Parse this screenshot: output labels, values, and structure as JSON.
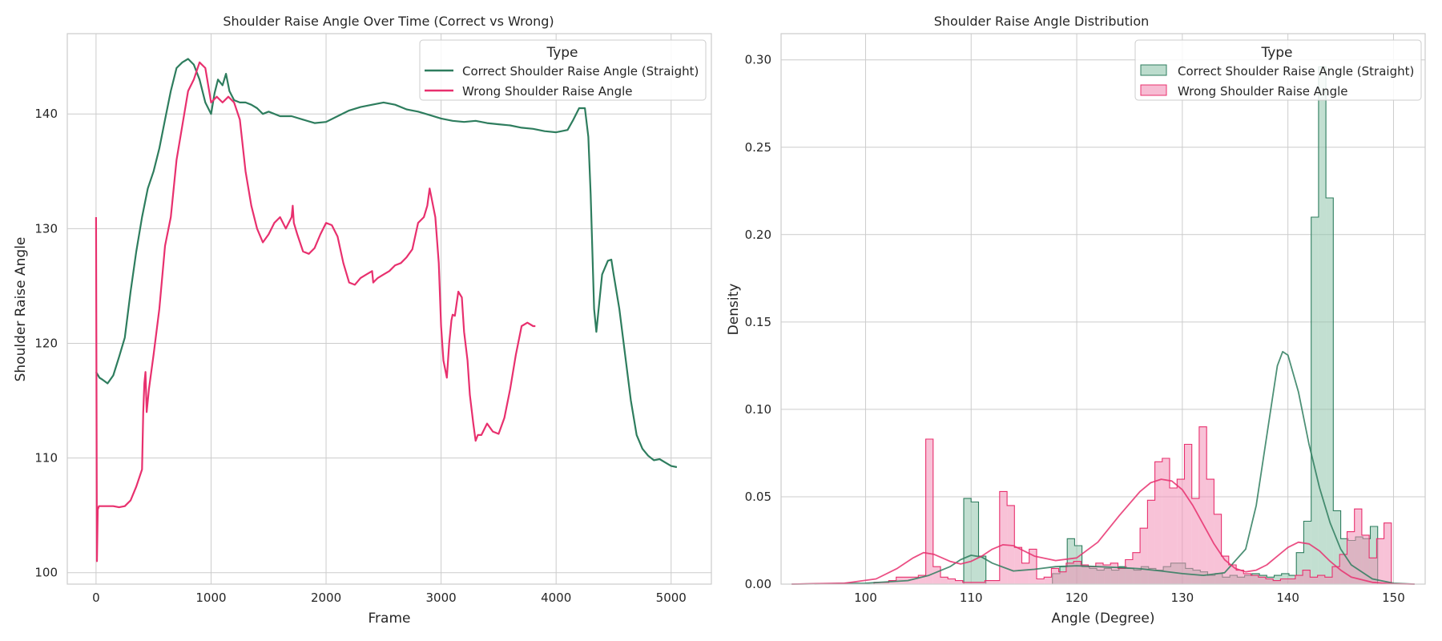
{
  "figure": {
    "left": {
      "title": "Shoulder Raise Angle Over Time (Correct vs Wrong)",
      "xlabel": "Frame",
      "ylabel": "Shoulder Raise Angle"
    },
    "right": {
      "title": "Shoulder Raise Angle Distribution",
      "xlabel": "Angle (Degree)",
      "ylabel": "Density"
    },
    "legend": {
      "title": "Type",
      "correct": "Correct Shoulder Raise Angle (Straight)",
      "wrong": "Wrong Shoulder Raise Angle"
    },
    "colors": {
      "correct": "#2e7d5e",
      "wrong": "#e8306e",
      "correct_fill": "#8fc4ab",
      "wrong_fill": "#f28fb6",
      "grid": "#cccccc"
    }
  },
  "chart_data": [
    {
      "type": "line",
      "title": "Shoulder Raise Angle Over Time (Correct vs Wrong)",
      "xlabel": "Frame",
      "ylabel": "Shoulder Raise Angle",
      "xlim": [
        -250,
        5350
      ],
      "ylim": [
        99,
        147
      ],
      "xticks": [
        0,
        1000,
        2000,
        3000,
        4000,
        5000
      ],
      "yticks": [
        100,
        110,
        120,
        130,
        140
      ],
      "grid": true,
      "legend_title": "Type",
      "legend_position": "top-right",
      "series": [
        {
          "name": "Correct Shoulder Raise Angle (Straight)",
          "color": "#2e7d5e",
          "x": [
            0,
            30,
            60,
            100,
            150,
            200,
            250,
            300,
            350,
            400,
            450,
            500,
            550,
            600,
            650,
            700,
            750,
            800,
            850,
            900,
            950,
            1000,
            1030,
            1060,
            1100,
            1130,
            1160,
            1200,
            1250,
            1300,
            1350,
            1400,
            1450,
            1500,
            1600,
            1700,
            1800,
            1900,
            2000,
            2100,
            2200,
            2300,
            2400,
            2500,
            2600,
            2700,
            2800,
            2900,
            3000,
            3100,
            3200,
            3300,
            3400,
            3500,
            3600,
            3700,
            3800,
            3900,
            4000,
            4100,
            4150,
            4200,
            4250,
            4280,
            4300,
            4330,
            4350,
            4380,
            4400,
            4450,
            4480,
            4500,
            4550,
            4600,
            4650,
            4700,
            4750,
            4800,
            4850,
            4900,
            4950,
            5000,
            5050
          ],
          "y": [
            117.5,
            117,
            116.8,
            116.5,
            117.2,
            118.8,
            120.5,
            124.5,
            128,
            131,
            133.5,
            135,
            137,
            139.5,
            142,
            144,
            144.5,
            144.8,
            144.3,
            143,
            141,
            140,
            141.8,
            143,
            142.5,
            143.5,
            142,
            141.2,
            141,
            141,
            140.8,
            140.5,
            140,
            140.2,
            139.8,
            139.8,
            139.5,
            139.2,
            139.3,
            139.8,
            140.3,
            140.6,
            140.8,
            141,
            140.8,
            140.4,
            140.2,
            139.9,
            139.6,
            139.4,
            139.3,
            139.4,
            139.2,
            139.1,
            139,
            138.8,
            138.7,
            138.5,
            138.4,
            138.6,
            139.5,
            140.5,
            140.5,
            138,
            133,
            123,
            121,
            124,
            126,
            127.2,
            127.3,
            126,
            123,
            119,
            115,
            112,
            110.8,
            110.2,
            109.8,
            109.9,
            109.6,
            109.3,
            109.2
          ]
        },
        {
          "name": "Wrong Shoulder Raise Angle",
          "color": "#e8306e",
          "x": [
            0,
            8,
            15,
            25,
            35,
            60,
            100,
            150,
            200,
            250,
            300,
            350,
            400,
            410,
            420,
            430,
            440,
            460,
            480,
            500,
            550,
            600,
            650,
            700,
            750,
            800,
            850,
            900,
            950,
            1000,
            1050,
            1100,
            1150,
            1200,
            1250,
            1300,
            1350,
            1400,
            1450,
            1500,
            1550,
            1600,
            1650,
            1700,
            1710,
            1720,
            1750,
            1800,
            1850,
            1900,
            1950,
            2000,
            2050,
            2100,
            2150,
            2200,
            2250,
            2300,
            2350,
            2400,
            2410,
            2420,
            2450,
            2500,
            2550,
            2600,
            2650,
            2700,
            2750,
            2800,
            2850,
            2880,
            2900,
            2950,
            2980,
            3000,
            3020,
            3050,
            3070,
            3090,
            3100,
            3120,
            3150,
            3180,
            3200,
            3230,
            3250,
            3280,
            3300,
            3320,
            3350,
            3400,
            3450,
            3500,
            3550,
            3600,
            3650,
            3700,
            3750,
            3800,
            3820
          ],
          "y": [
            131,
            101,
            105.5,
            105.8,
            105.8,
            105.8,
            105.8,
            105.8,
            105.7,
            105.8,
            106.3,
            107.5,
            109,
            114,
            116.5,
            117.5,
            114,
            116,
            117.5,
            119,
            123,
            128.5,
            131,
            136,
            139,
            142,
            143,
            144.5,
            144,
            141,
            141.5,
            141,
            141.5,
            141,
            139.5,
            135,
            132,
            130,
            128.8,
            129.5,
            130.5,
            131,
            130,
            131,
            132,
            130.5,
            129.5,
            128,
            127.8,
            128.3,
            129.5,
            130.5,
            130.3,
            129.3,
            127,
            125.3,
            125.1,
            125.7,
            126,
            126.3,
            125.3,
            125.4,
            125.7,
            126,
            126.3,
            126.8,
            127,
            127.5,
            128.2,
            130.5,
            131,
            132,
            133.5,
            131,
            127,
            121.5,
            118.5,
            117,
            120,
            122,
            122.5,
            122.4,
            124.5,
            124,
            121,
            118.5,
            115.5,
            113,
            111.5,
            112,
            112,
            113,
            112.3,
            112.1,
            113.5,
            116,
            119,
            121.5,
            121.8,
            121.5,
            121.5
          ]
        }
      ]
    },
    {
      "type": "histogram",
      "title": "Shoulder Raise Angle Distribution",
      "xlabel": "Angle (Degree)",
      "ylabel": "Density",
      "xlim": [
        92,
        153
      ],
      "ylim": [
        0,
        0.315
      ],
      "xticks": [
        100,
        110,
        120,
        130,
        140,
        150
      ],
      "yticks": [
        0.0,
        0.05,
        0.1,
        0.15,
        0.2,
        0.25,
        0.3
      ],
      "ytick_labels": [
        "0.00",
        "0.05",
        "0.10",
        "0.15",
        "0.20",
        "0.25",
        "0.30"
      ],
      "grid": true,
      "legend_title": "Type",
      "legend_position": "top-right",
      "bin_width": 0.7,
      "series": [
        {
          "name": "Correct Shoulder Raise Angle (Straight)",
          "color": "#2e7d5e",
          "bin_start": 109.3,
          "counts": [
            0.049,
            0.047,
            0.016,
            0.0,
            0.0,
            0.0,
            0.0,
            0.0,
            0.0,
            0.0,
            0.0,
            0.0,
            0.006,
            0.01,
            0.026,
            0.022,
            0.01,
            0.009,
            0.008,
            0.009,
            0.008,
            0.01,
            0.009,
            0.008,
            0.01,
            0.009,
            0.008,
            0.01,
            0.012,
            0.012,
            0.009,
            0.008,
            0.007,
            0.005,
            0.006,
            0.004,
            0.005,
            0.004,
            0.005,
            0.006,
            0.005,
            0.004,
            0.005,
            0.006,
            0.005,
            0.018,
            0.036,
            0.21,
            0.296,
            0.221,
            0.042,
            0.026,
            0.025,
            0.027,
            0.026,
            0.033
          ],
          "kde_x": [
            93,
            100,
            104,
            106,
            108,
            109,
            110,
            111,
            112,
            114,
            116,
            118,
            120,
            122,
            124,
            126,
            128,
            130,
            132,
            134,
            136,
            137,
            138,
            139,
            139.5,
            140,
            141,
            142,
            143,
            144,
            145,
            146,
            148,
            150,
            152
          ],
          "kde_y": [
            0,
            0.0005,
            0.002,
            0.005,
            0.01,
            0.014,
            0.0165,
            0.0155,
            0.012,
            0.0075,
            0.0085,
            0.01,
            0.0105,
            0.01,
            0.0095,
            0.0088,
            0.0075,
            0.006,
            0.005,
            0.0065,
            0.02,
            0.045,
            0.085,
            0.125,
            0.133,
            0.131,
            0.11,
            0.08,
            0.055,
            0.035,
            0.02,
            0.011,
            0.003,
            0.0005,
            0
          ]
        },
        {
          "name": "Wrong Shoulder Raise Angle",
          "color": "#e8306e",
          "bin_start": 100.8,
          "counts": [
            0.001,
            0.001,
            0.002,
            0.004,
            0.004,
            0.004,
            0.005,
            0.083,
            0.01,
            0.004,
            0.003,
            0.002,
            0.001,
            0.001,
            0.001,
            0.002,
            0.002,
            0.053,
            0.045,
            0.021,
            0.012,
            0.02,
            0.003,
            0.004,
            0.009,
            0.007,
            0.012,
            0.013,
            0.011,
            0.01,
            0.012,
            0.011,
            0.012,
            0.009,
            0.014,
            0.018,
            0.032,
            0.048,
            0.07,
            0.072,
            0.055,
            0.06,
            0.08,
            0.049,
            0.09,
            0.06,
            0.04,
            0.016,
            0.011,
            0.008,
            0.006,
            0.005,
            0.004,
            0.003,
            0.002,
            0.003,
            0.003,
            0.005,
            0.008,
            0.004,
            0.005,
            0.004,
            0.01,
            0.017,
            0.03,
            0.043,
            0.028,
            0.015,
            0.026,
            0.035
          ],
          "kde_x": [
            93,
            98,
            101,
            103,
            104.5,
            105.5,
            106.5,
            108,
            109,
            110,
            111,
            112,
            113,
            114,
            116,
            118,
            120,
            122,
            124,
            126,
            127,
            128,
            129,
            130,
            131,
            132,
            133,
            134,
            135,
            136,
            137,
            138,
            139,
            140,
            141,
            142,
            143,
            144,
            145,
            146,
            148,
            150,
            152
          ],
          "kde_y": [
            0,
            0.0005,
            0.003,
            0.009,
            0.015,
            0.018,
            0.017,
            0.013,
            0.0115,
            0.013,
            0.016,
            0.02,
            0.0225,
            0.022,
            0.016,
            0.0135,
            0.015,
            0.024,
            0.039,
            0.053,
            0.058,
            0.06,
            0.059,
            0.054,
            0.045,
            0.034,
            0.023,
            0.014,
            0.009,
            0.007,
            0.008,
            0.011,
            0.016,
            0.021,
            0.024,
            0.023,
            0.019,
            0.013,
            0.008,
            0.004,
            0.001,
            0.0002,
            0
          ]
        }
      ]
    }
  ]
}
